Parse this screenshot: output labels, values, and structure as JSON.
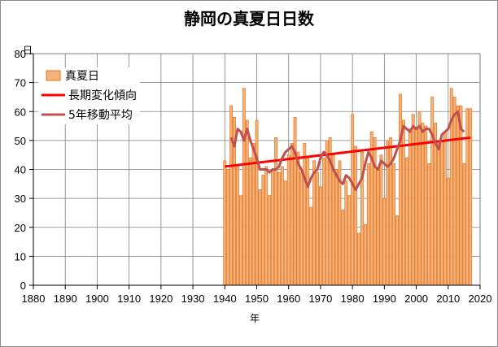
{
  "chart_data": {
    "type": "bar",
    "title": "静岡の真夏日日数",
    "xlabel": "年",
    "ylabel": "日",
    "xlim": [
      1880,
      2020
    ],
    "ylim": [
      0,
      80
    ],
    "x_ticks": [
      1880,
      1890,
      1900,
      1910,
      1920,
      1930,
      1940,
      1950,
      1960,
      1970,
      1980,
      1990,
      2000,
      2010,
      2020
    ],
    "y_ticks": [
      0,
      10,
      20,
      30,
      40,
      50,
      60,
      70,
      80
    ],
    "grid": true,
    "legend_position": "top-left",
    "colors": {
      "bar_fill": "#f5b27a",
      "bar_stroke": "#e2741f",
      "trend_line": "#ff0000",
      "moving_average": "#c0504d",
      "grid": "#7f7f7f"
    },
    "series": [
      {
        "name": "真夏日",
        "type": "bar",
        "x": [
          1940,
          1941,
          1942,
          1943,
          1944,
          1945,
          1946,
          1947,
          1948,
          1949,
          1950,
          1951,
          1952,
          1953,
          1954,
          1955,
          1956,
          1957,
          1958,
          1959,
          1960,
          1961,
          1962,
          1963,
          1964,
          1965,
          1966,
          1967,
          1968,
          1969,
          1970,
          1971,
          1972,
          1973,
          1974,
          1975,
          1976,
          1977,
          1978,
          1979,
          1980,
          1981,
          1982,
          1983,
          1984,
          1985,
          1986,
          1987,
          1988,
          1989,
          1990,
          1991,
          1992,
          1993,
          1994,
          1995,
          1996,
          1997,
          1998,
          1999,
          2000,
          2001,
          2002,
          2003,
          2004,
          2005,
          2006,
          2007,
          2008,
          2009,
          2010,
          2011,
          2012,
          2013,
          2014,
          2015,
          2016,
          2017
        ],
        "values": [
          43,
          40,
          62,
          58,
          41,
          31,
          68,
          57,
          44,
          49,
          57,
          33,
          38,
          41,
          31,
          40,
          51,
          39,
          41,
          36,
          45,
          49,
          58,
          46,
          39,
          49,
          44,
          27,
          43,
          39,
          34,
          44,
          50,
          51,
          45,
          40,
          43,
          26,
          36,
          31,
          59,
          48,
          18,
          46,
          21,
          42,
          53,
          51,
          40,
          45,
          30,
          50,
          51,
          42,
          24,
          66,
          57,
          44,
          54,
          59,
          54,
          60,
          56,
          55,
          42,
          65,
          56,
          49,
          50,
          53,
          37,
          68,
          65,
          62,
          62,
          42,
          61,
          61
        ]
      },
      {
        "name": "長期変化傾向",
        "type": "line",
        "x": [
          1940,
          2017
        ],
        "values": [
          41,
          51
        ]
      },
      {
        "name": "5年移動平均",
        "type": "line",
        "x": [
          1942,
          1943,
          1944,
          1945,
          1946,
          1947,
          1948,
          1949,
          1950,
          1951,
          1952,
          1953,
          1954,
          1955,
          1956,
          1957,
          1958,
          1959,
          1960,
          1961,
          1962,
          1963,
          1964,
          1965,
          1966,
          1967,
          1968,
          1969,
          1970,
          1971,
          1972,
          1973,
          1974,
          1975,
          1976,
          1977,
          1978,
          1979,
          1980,
          1981,
          1982,
          1983,
          1984,
          1985,
          1986,
          1987,
          1988,
          1989,
          1990,
          1991,
          1992,
          1993,
          1994,
          1995,
          1996,
          1997,
          1998,
          1999,
          2000,
          2001,
          2002,
          2003,
          2004,
          2005,
          2006,
          2007,
          2008,
          2009,
          2010,
          2011,
          2012,
          2013,
          2014,
          2015
        ],
        "values": [
          51,
          48,
          54,
          53,
          50,
          54,
          50,
          47,
          44,
          40,
          40,
          40,
          39,
          40,
          40,
          41,
          44,
          46,
          47,
          48,
          46,
          42,
          40,
          37,
          34,
          37,
          39,
          40,
          44,
          46,
          45,
          43,
          40,
          38,
          36,
          35,
          38,
          37,
          35,
          33,
          35,
          37,
          42,
          46,
          44,
          41,
          40,
          43,
          42,
          41,
          42,
          44,
          47,
          50,
          55,
          54,
          53,
          55,
          54,
          55,
          53,
          54,
          54,
          52,
          49,
          47,
          52,
          53,
          54,
          57,
          59,
          60,
          54,
          53
        ]
      }
    ]
  }
}
